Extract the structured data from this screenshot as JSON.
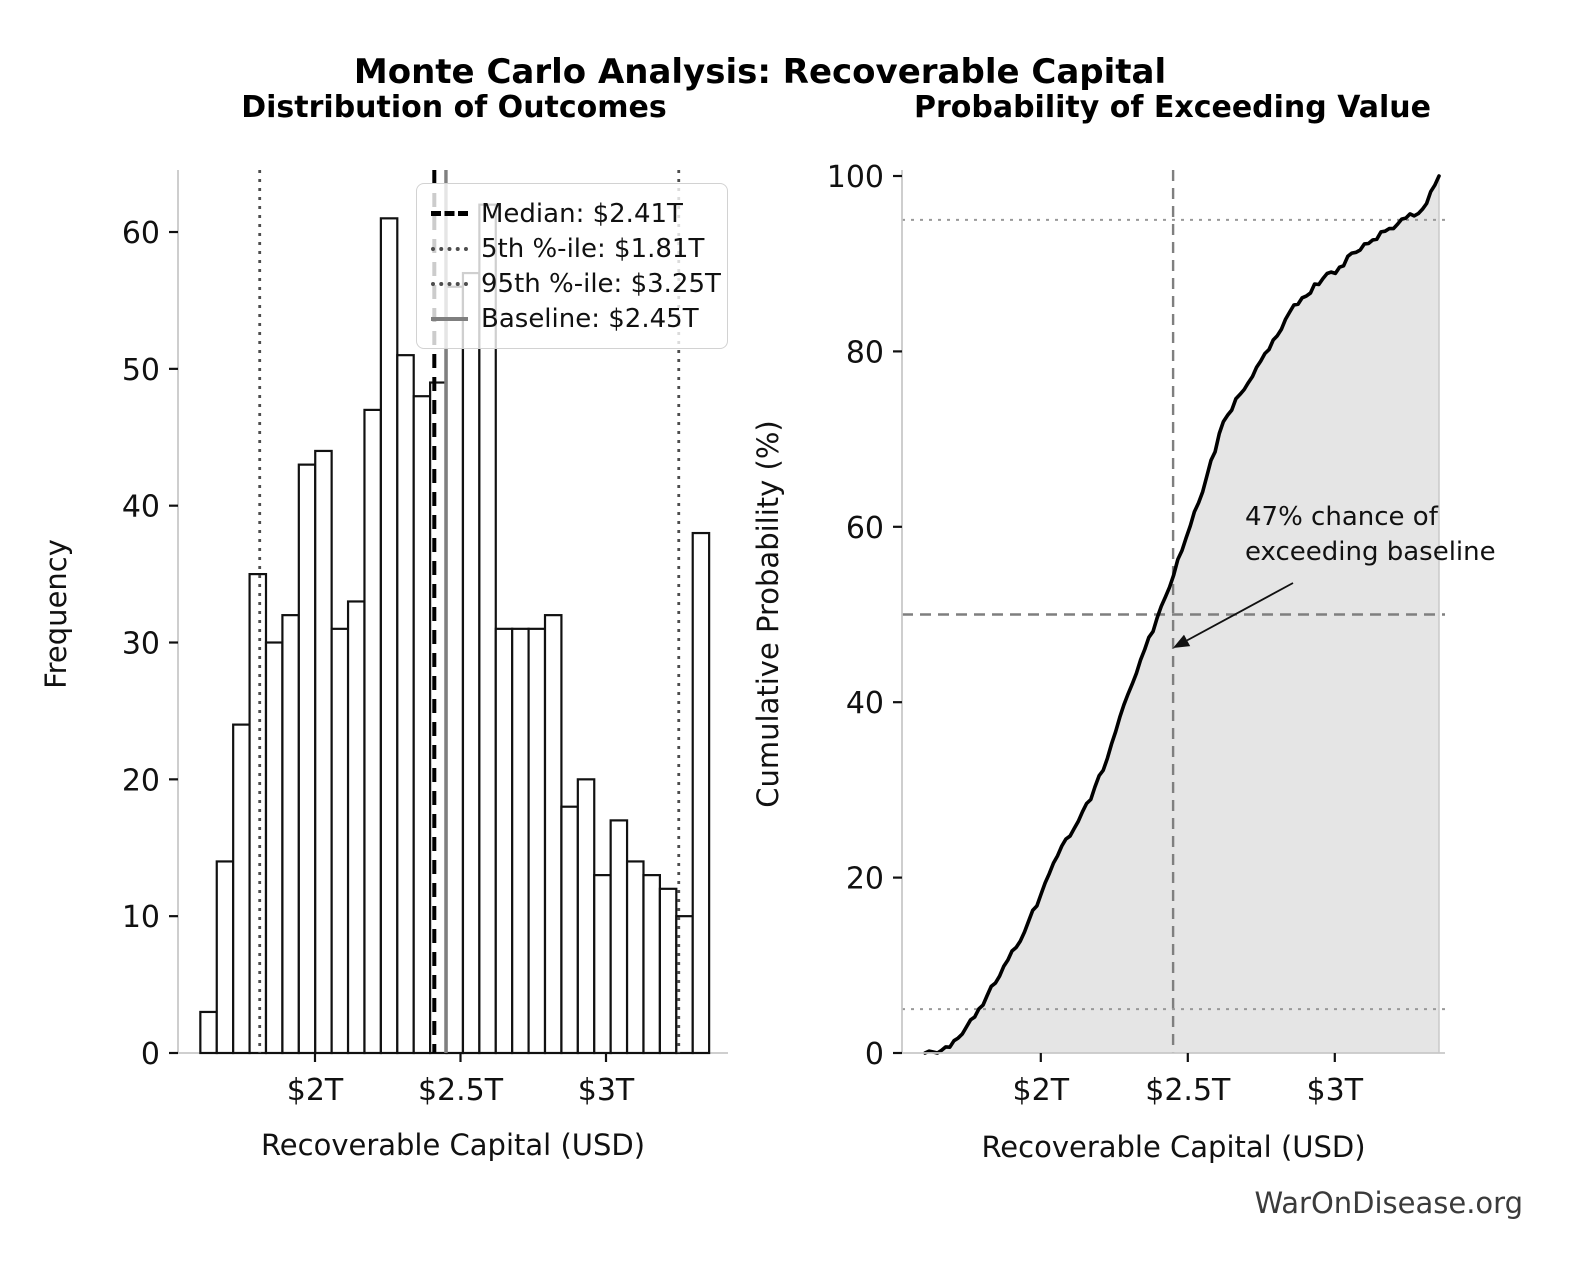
{
  "figure": {
    "title": "Monte Carlo Analysis: Recoverable Capital",
    "watermark": "WarOnDisease.org"
  },
  "chart_data": [
    {
      "type": "bar",
      "subtype": "histogram",
      "title": "Distribution of Outcomes",
      "xlabel": "Recoverable Capital (USD)",
      "ylabel": "Frequency",
      "x_tick_labels": [
        "$2T",
        "$2.5T",
        "$3T"
      ],
      "x_tick_values": [
        2.0,
        2.5,
        3.0
      ],
      "y_ticks": [
        0,
        10,
        20,
        30,
        40,
        50,
        60
      ],
      "xlim": [
        1.53,
        3.42
      ],
      "ylim": [
        0,
        64.5
      ],
      "grid": false,
      "bin_start_trillions": 1.606,
      "bin_width_trillions": 0.0564,
      "counts": [
        3,
        14,
        24,
        35,
        30,
        32,
        43,
        44,
        31,
        33,
        47,
        61,
        51,
        48,
        49,
        56,
        57,
        62,
        31,
        31,
        31,
        32,
        18,
        20,
        13,
        17,
        14,
        13,
        12,
        10,
        38
      ],
      "total_simulations": 1000,
      "bar_fill": "#ffffff",
      "bar_edge": "#111111",
      "legend_position": "upper right",
      "reference_lines": [
        {
          "label": "Median: $2.41T",
          "value_trillions": 2.41,
          "style": "dashed",
          "color": "#000000"
        },
        {
          "label": "5th %-ile: $1.81T",
          "value_trillions": 1.81,
          "style": "dotted",
          "color": "#4d4d4d"
        },
        {
          "label": "95th %-ile: $3.25T",
          "value_trillions": 3.25,
          "style": "dotted",
          "color": "#4d4d4d"
        },
        {
          "label": "Baseline: $2.45T",
          "value_trillions": 2.45,
          "style": "solid",
          "color": "#7f7f7f"
        }
      ]
    },
    {
      "type": "line",
      "subtype": "empirical-cdf",
      "title": "Probability of Exceeding Value",
      "xlabel": "Recoverable Capital (USD)",
      "ylabel": "Cumulative Probability (%)",
      "x_tick_labels": [
        "$2T",
        "$2.5T",
        "$3T"
      ],
      "x_tick_values": [
        2.0,
        2.5,
        3.0
      ],
      "y_ticks": [
        0,
        20,
        40,
        60,
        80,
        100
      ],
      "xlim": [
        1.53,
        3.42
      ],
      "ylim": [
        0,
        100.5
      ],
      "grid": false,
      "x_start_trillions": 1.606,
      "x_step_trillions": 0.0564,
      "cumulative_pct": [
        0,
        0.3,
        1.7,
        4.1,
        7.6,
        10.6,
        13.8,
        18.1,
        22.5,
        25.6,
        28.9,
        33.6,
        39.7,
        44.8,
        49.6,
        54.5,
        60.1,
        65.8,
        72,
        75.1,
        78.2,
        81.3,
        84.5,
        86.3,
        88.3,
        89.6,
        91.3,
        92.7,
        94,
        95.2,
        96.2,
        100
      ],
      "line_color": "#000000",
      "fill_under_curve": true,
      "fill_color": "rgba(0,0,0,0.10)",
      "reference_lines": [
        {
          "orientation": "horizontal",
          "value": 50,
          "style": "dashed",
          "color": "#7f7f7f"
        },
        {
          "orientation": "vertical",
          "value_trillions": 2.45,
          "style": "dashed",
          "color": "#7f7f7f"
        },
        {
          "orientation": "horizontal",
          "value": 5,
          "style": "dotted",
          "color": "#999999"
        },
        {
          "orientation": "horizontal",
          "value": 95,
          "style": "dotted",
          "color": "#999999"
        }
      ],
      "annotation": {
        "line1": "47% chance of",
        "line2": "exceeding baseline"
      }
    }
  ]
}
